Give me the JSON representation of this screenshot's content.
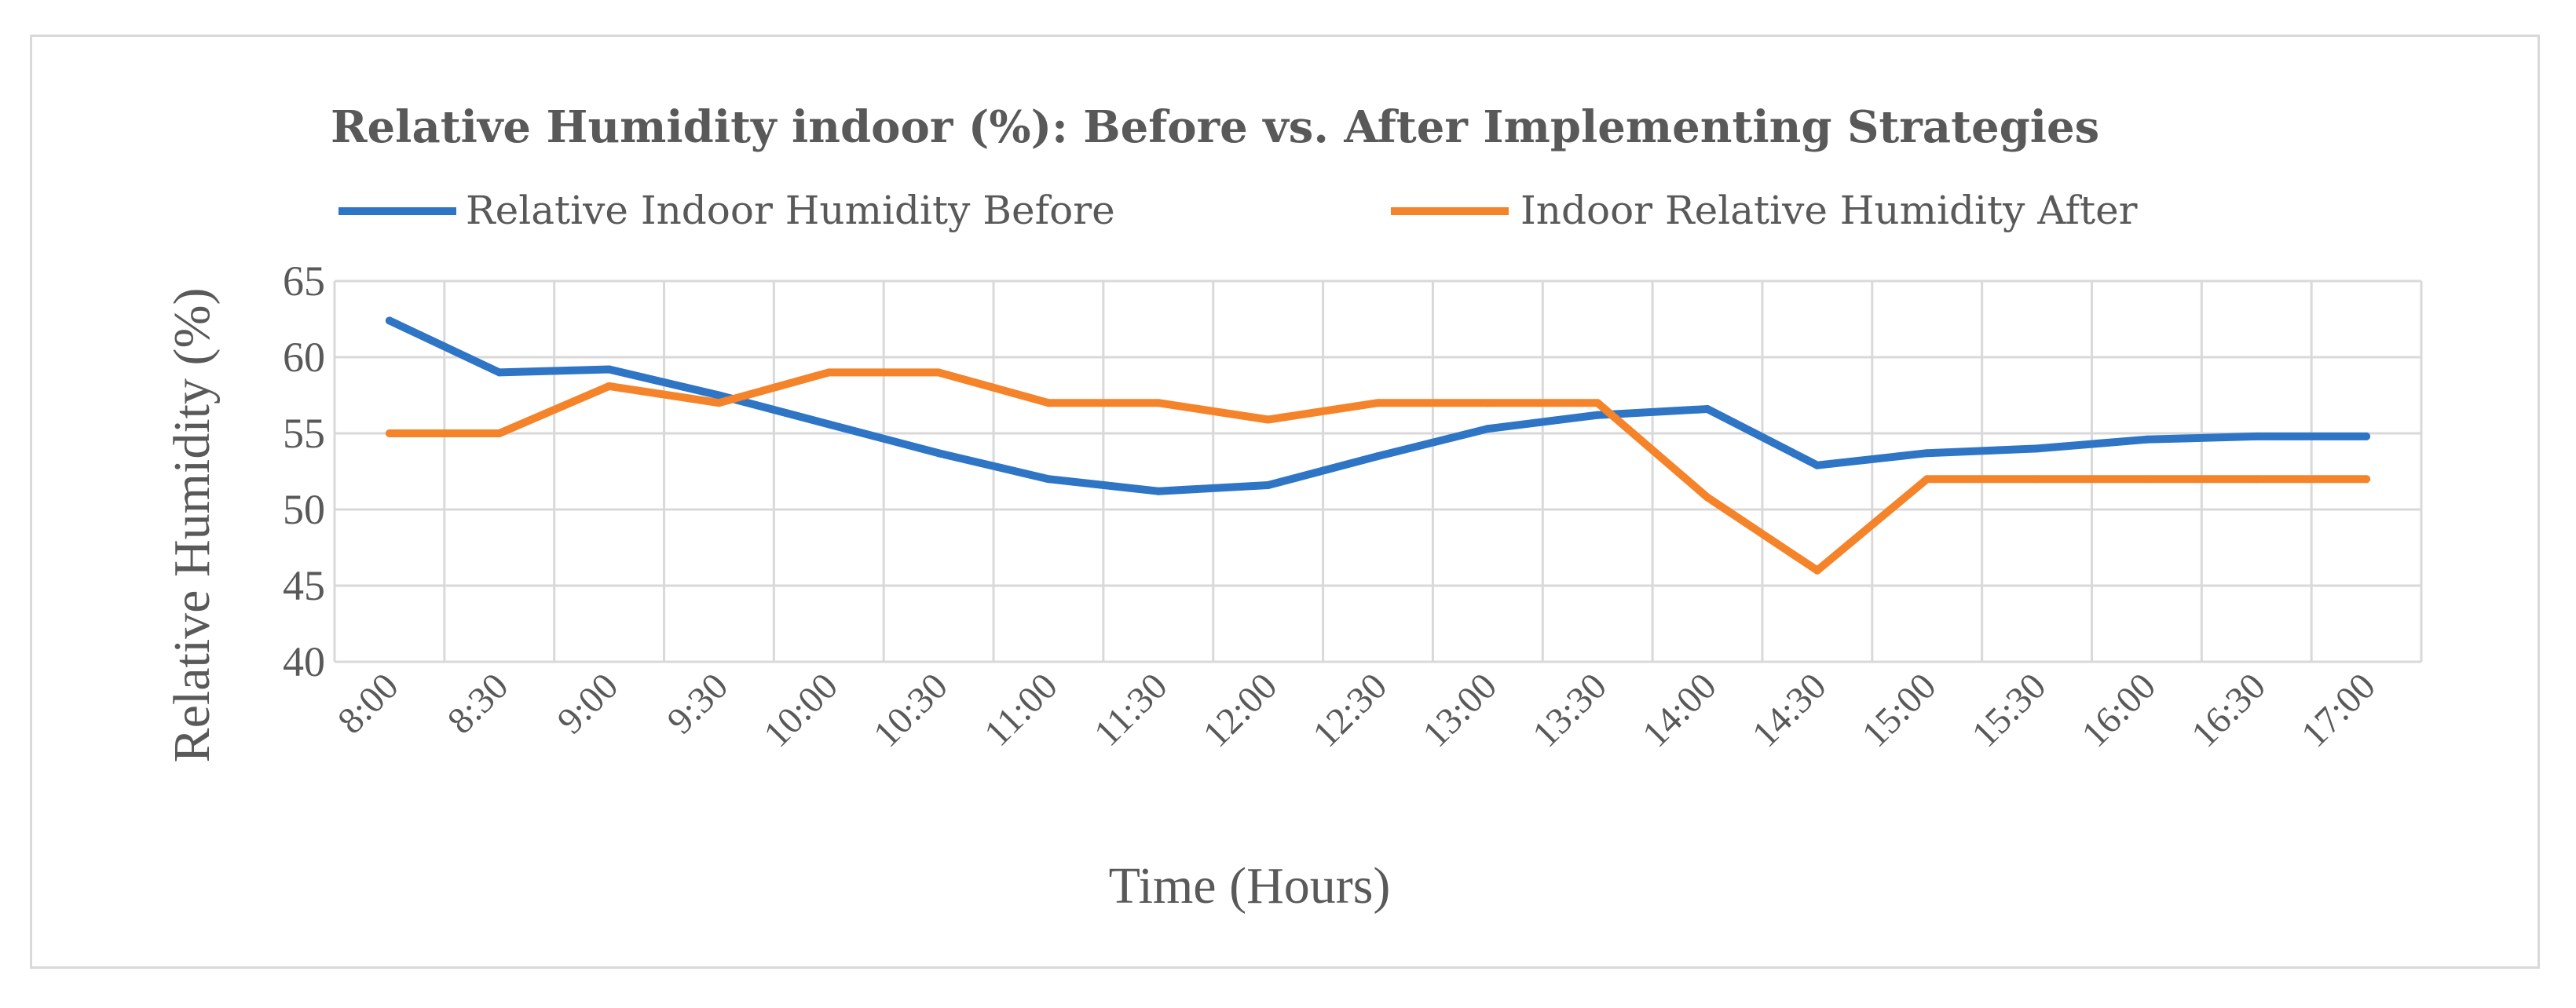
{
  "chart_data": {
    "type": "line",
    "title": "Relative Humidity indoor (%): Before vs. After Implementing Strategies",
    "xlabel": "Time (Hours)",
    "ylabel": "Relative Humidity (%)",
    "ylim": [
      40,
      65
    ],
    "yticks": [
      40,
      45,
      50,
      55,
      60,
      65
    ],
    "grid": true,
    "legend_position": "top",
    "categories": [
      "8:00",
      "8:30",
      "9:00",
      "9:30",
      "10:00",
      "10:30",
      "11:00",
      "11:30",
      "12:00",
      "12:30",
      "13:00",
      "13:30",
      "14:00",
      "14:30",
      "15:00",
      "15:30",
      "16:00",
      "16:30",
      "17:00"
    ],
    "series": [
      {
        "name": "Relative Indoor Humidity Before",
        "color": "#2e75c6",
        "values": [
          62.4,
          59,
          59.2,
          57.5,
          55.6,
          53.7,
          52,
          51.2,
          51.6,
          53.5,
          55.3,
          56.2,
          56.6,
          52.9,
          53.7,
          54,
          54.6,
          54.8,
          54.8
        ]
      },
      {
        "name": "Indoor Relative Humidity After",
        "color": "#f5832a",
        "values": [
          55,
          55,
          58.1,
          57,
          59,
          59,
          57,
          57,
          55.9,
          57,
          57,
          57,
          50.8,
          46,
          52,
          52,
          52,
          52,
          52
        ]
      }
    ]
  }
}
